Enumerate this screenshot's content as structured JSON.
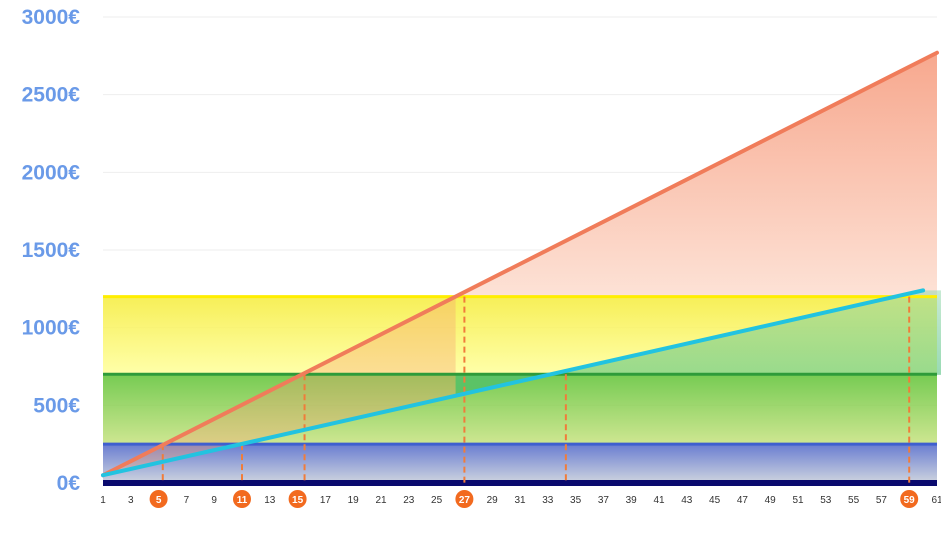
{
  "chart_data": {
    "type": "line",
    "x_start": 1,
    "x_end": 61,
    "ylim": [
      0,
      3000
    ],
    "x_tick_labels": [
      "1",
      "3",
      "5",
      "7",
      "9",
      "11",
      "13",
      "15",
      "17",
      "19",
      "21",
      "23",
      "25",
      "27",
      "29",
      "31",
      "33",
      "35",
      "37",
      "39",
      "41",
      "43",
      "45",
      "47",
      "49",
      "51",
      "53",
      "55",
      "57",
      "59",
      "61"
    ],
    "y_tick_labels": [
      "0€",
      "500€",
      "1000€",
      "1500€",
      "2000€",
      "2500€",
      "3000€"
    ],
    "highlighted_x": [
      "5",
      "11",
      "15",
      "27",
      "59"
    ],
    "grid": true,
    "bands": [
      {
        "from": 0,
        "to": 250,
        "color": "#6a7fb8"
      },
      {
        "from": 250,
        "to": 700,
        "color": "#7cc83a"
      },
      {
        "from": 700,
        "to": 1200,
        "color": "#f5f050"
      }
    ],
    "threshold_lines": [
      {
        "value": 0,
        "color": "#0a0a6e"
      },
      {
        "value": 250,
        "color": "#3f5fcf"
      },
      {
        "value": 700,
        "color": "#2e9b3a"
      },
      {
        "value": 1200,
        "color": "#ffee00"
      }
    ],
    "series": [
      {
        "x": [
          1,
          61
        ],
        "values": [
          50,
          2770
        ],
        "color": "#f07c5a",
        "fill": "#f9b9a4"
      },
      {
        "x": [
          1,
          60
        ],
        "values": [
          50,
          1240
        ],
        "color": "#22c3e0",
        "fill": "#8fd8a0"
      }
    ],
    "drop_lines": [
      {
        "x": 5.3,
        "y": 250
      },
      {
        "x": 11,
        "y": 250
      },
      {
        "x": 15.5,
        "y": 700
      },
      {
        "x": 27,
        "y": 1200
      },
      {
        "x": 34.3,
        "y": 700
      },
      {
        "x": 59,
        "y": 1200
      }
    ],
    "colors": {
      "axis_label": "#6a9ae8",
      "tick_highlight": "#f26a1f",
      "drop_line": "#f07c3a",
      "grid": "#eeeeee"
    }
  }
}
